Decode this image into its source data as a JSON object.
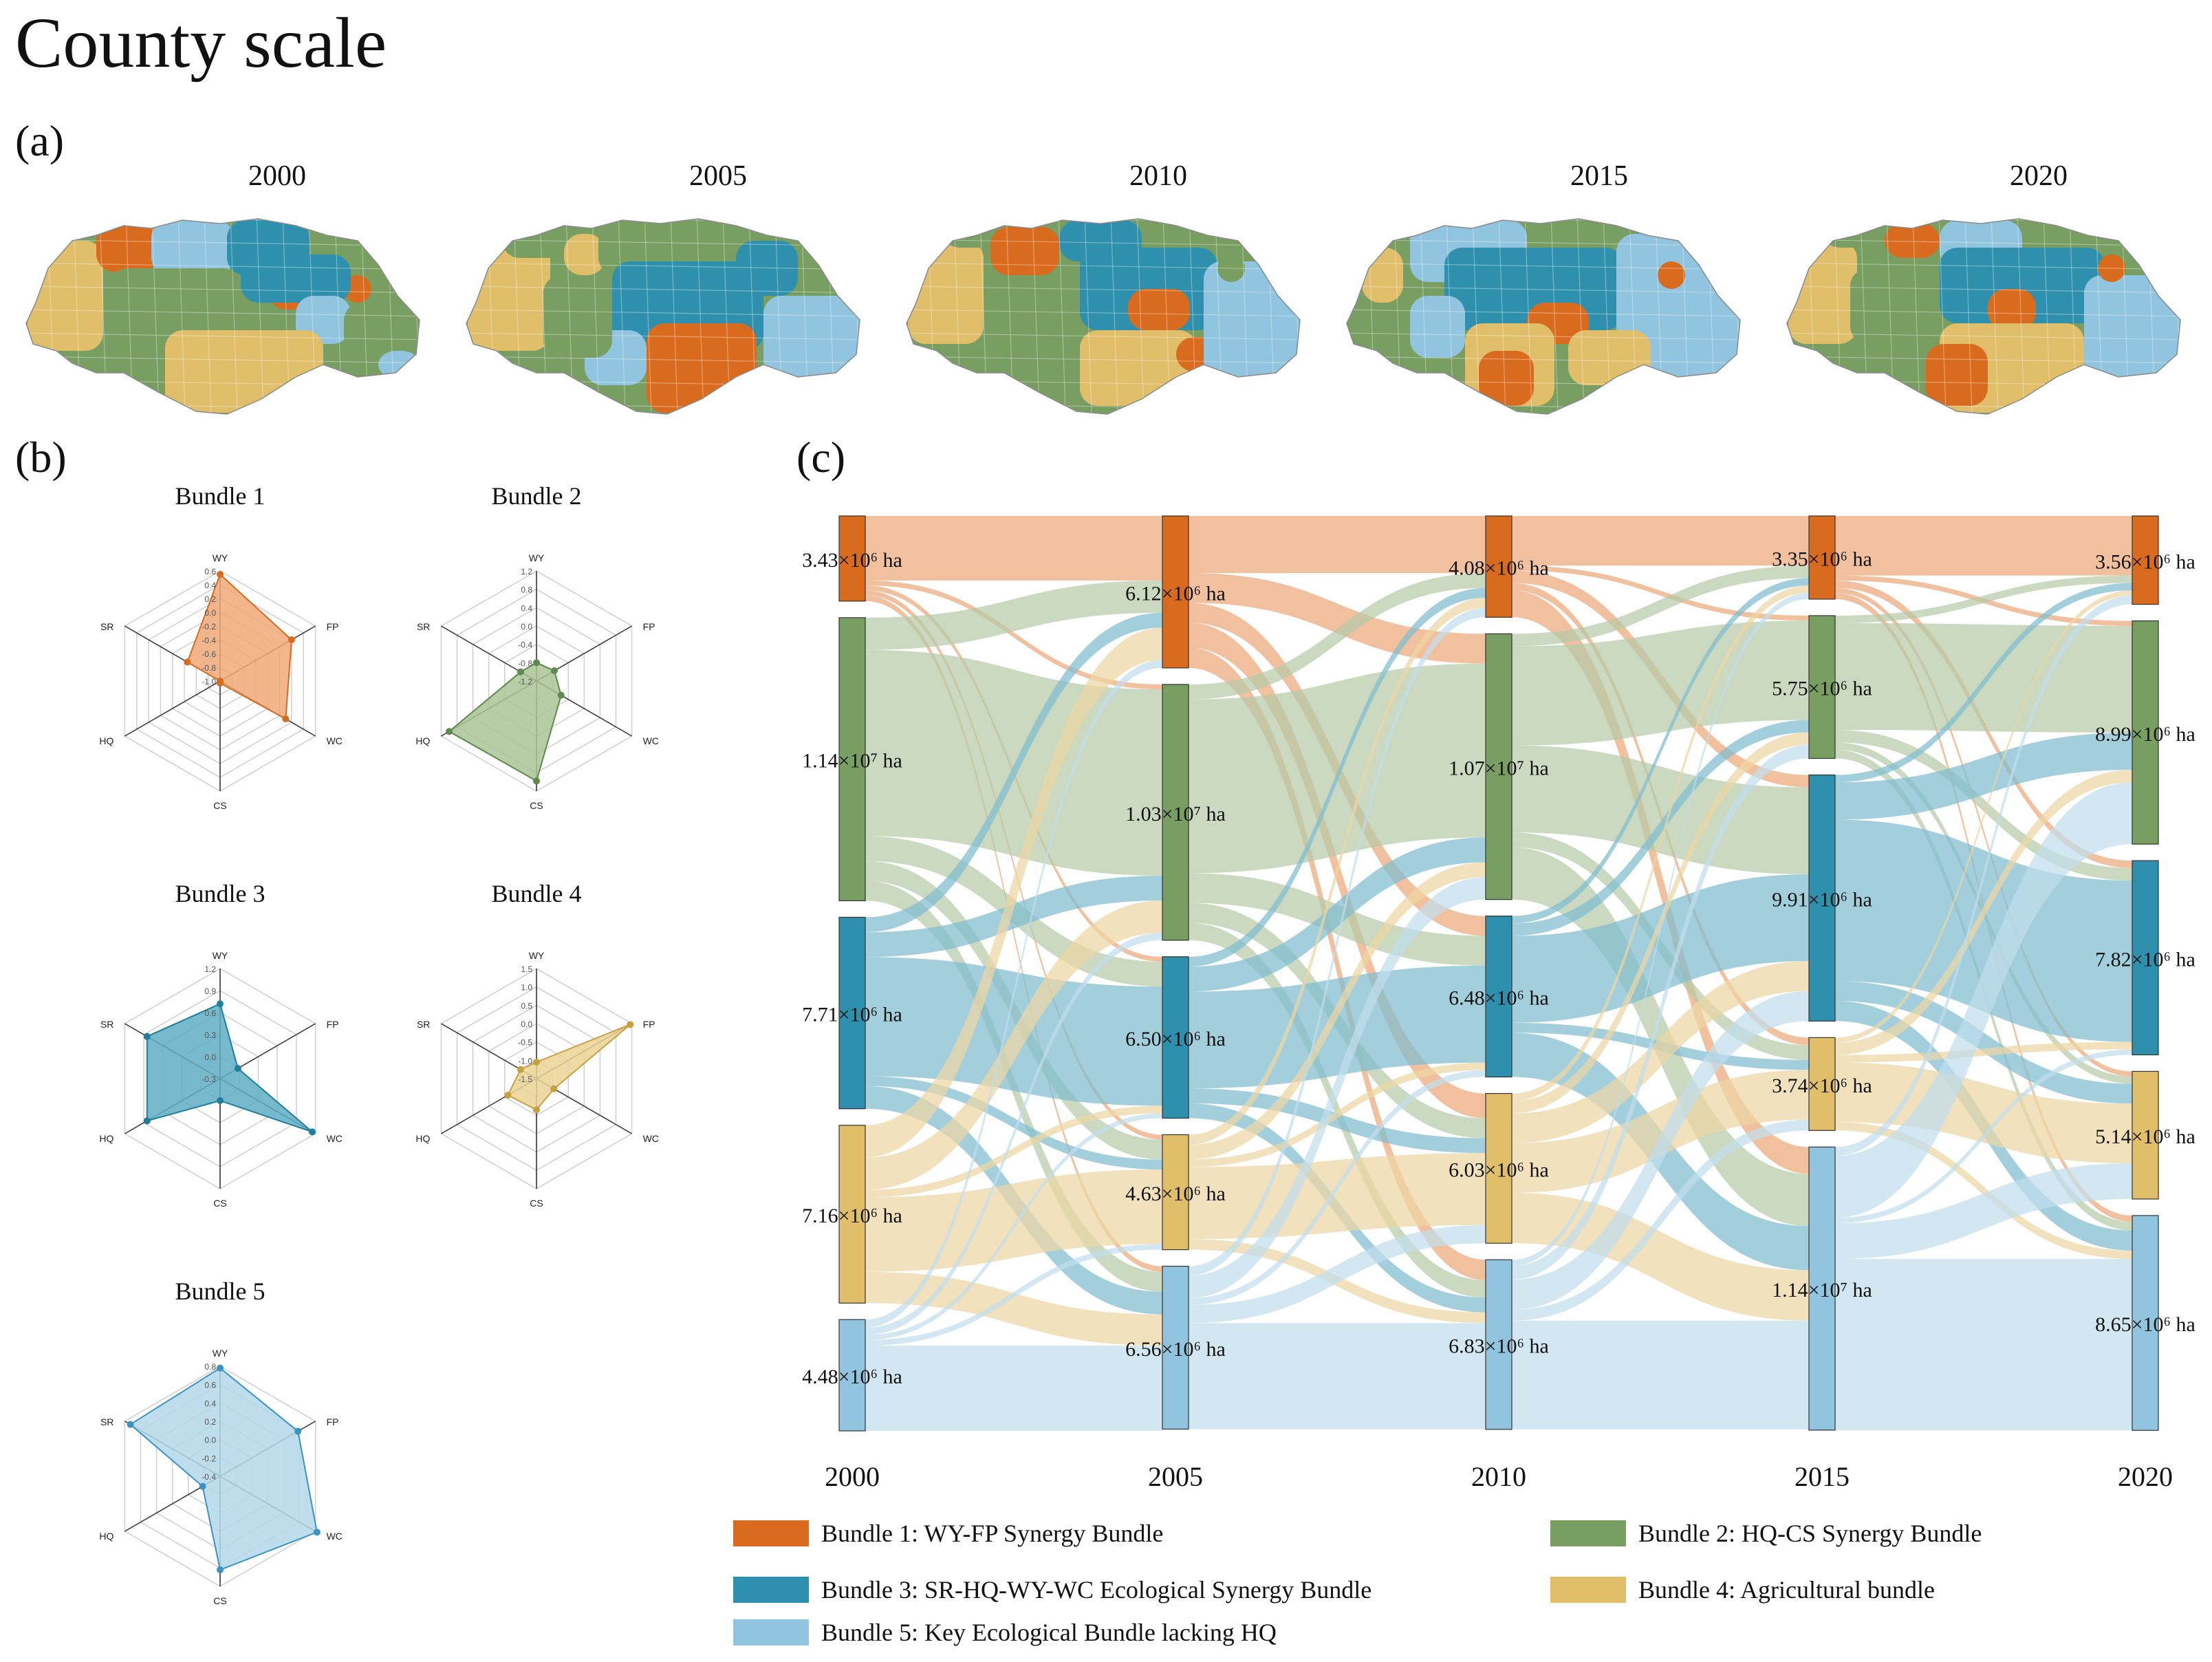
{
  "page_title": "County scale",
  "panel_labels": {
    "a": "(a)",
    "b": "(b)",
    "c": "(c)"
  },
  "colors": {
    "b1": "#D96B1E",
    "b2": "#789E62",
    "b3": "#2E90AD",
    "b4": "#E1BE6A",
    "b5": "#91C4DE",
    "b1l": "#ECA77A",
    "b2l": "#B5CBA8",
    "b3l": "#7FBDD0",
    "b4l": "#EDD6A4",
    "b5l": "#C0DEEC"
  },
  "map_years": [
    "2000",
    "2005",
    "2010",
    "2015",
    "2020"
  ],
  "chart_data": [
    {
      "type": "radar",
      "title": "Bundle 1",
      "color": "#D96B1E",
      "fill": "#F0A878",
      "axes": [
        "WY",
        "FP",
        "WC",
        "CS",
        "HQ",
        "SR"
      ],
      "ticks": [
        "0.6",
        "0.4",
        "0.2",
        "0.0",
        "-0.2",
        "-0.4",
        "-0.6",
        "-0.8",
        "-1.0"
      ],
      "range": [
        -1.0,
        0.6
      ],
      "values": [
        0.55,
        0.2,
        0.1,
        -0.97,
        -1.0,
        -0.45
      ]
    },
    {
      "type": "radar",
      "title": "Bundle 2",
      "color": "#5E8A4E",
      "fill": "#A9C495",
      "axes": [
        "WY",
        "FP",
        "WC",
        "CS",
        "HQ",
        "SR"
      ],
      "ticks": [
        "1.2",
        "0.8",
        "0.4",
        "0.0",
        "-0.4",
        "-0.8",
        "-1.2"
      ],
      "range": [
        -1.2,
        1.2
      ],
      "values": [
        -0.8,
        -0.75,
        -0.58,
        0.98,
        1.0,
        -0.8
      ]
    },
    {
      "type": "radar",
      "title": "Bundle 3",
      "color": "#1F7E9C",
      "fill": "#5FAEC6",
      "axes": [
        "WY",
        "FP",
        "WC",
        "CS",
        "HQ",
        "SR"
      ],
      "ticks": [
        "1.2",
        "0.9",
        "0.6",
        "0.3",
        "0.0",
        "-0.3"
      ],
      "range": [
        -0.3,
        1.2
      ],
      "values": [
        0.72,
        -0.02,
        1.15,
        0.0,
        0.85,
        0.85
      ]
    },
    {
      "type": "radar",
      "title": "Bundle 4",
      "color": "#C9A040",
      "fill": "#EBD394",
      "axes": [
        "WY",
        "FP",
        "WC",
        "CS",
        "HQ",
        "SR"
      ],
      "ticks": [
        "1.5",
        "1.0",
        "0.5",
        "0.0",
        "-0.5",
        "-1.0",
        "-1.5"
      ],
      "range": [
        -1.5,
        1.5
      ],
      "values": [
        -1.05,
        1.45,
        -0.95,
        -0.65,
        -0.6,
        -1.0
      ]
    },
    {
      "type": "radar",
      "title": "Bundle 5",
      "color": "#3A93C1",
      "fill": "#B4D8EA",
      "axes": [
        "WY",
        "FP",
        "WC",
        "CS",
        "HQ",
        "SR"
      ],
      "ticks": [
        "0.8",
        "0.6",
        "0.4",
        "0.2",
        "0.0",
        "-0.2",
        "-0.4"
      ],
      "range": [
        -0.4,
        0.8
      ],
      "values": [
        0.78,
        0.58,
        0.82,
        0.62,
        -0.18,
        0.73
      ]
    },
    {
      "type": "sankey",
      "years": [
        "2000",
        "2005",
        "2010",
        "2015",
        "2020"
      ],
      "nodes": [
        [
          {
            "bundle": 1,
            "value": 3.43,
            "label": "3.43×10⁶ ha"
          },
          {
            "bundle": 2,
            "value": 11.4,
            "label": "1.14×10⁷ ha"
          },
          {
            "bundle": 3,
            "value": 7.71,
            "label": "7.71×10⁶ ha"
          },
          {
            "bundle": 4,
            "value": 7.16,
            "label": "7.16×10⁶ ha"
          },
          {
            "bundle": 5,
            "value": 4.48,
            "label": "4.48×10⁶ ha"
          }
        ],
        [
          {
            "bundle": 1,
            "value": 6.12,
            "label": "6.12×10⁶ ha"
          },
          {
            "bundle": 2,
            "value": 10.3,
            "label": "1.03×10⁷ ha"
          },
          {
            "bundle": 3,
            "value": 6.5,
            "label": "6.50×10⁶ ha"
          },
          {
            "bundle": 4,
            "value": 4.63,
            "label": "4.63×10⁶ ha"
          },
          {
            "bundle": 5,
            "value": 6.56,
            "label": "6.56×10⁶ ha"
          }
        ],
        [
          {
            "bundle": 1,
            "value": 4.08,
            "label": "4.08×10⁶ ha"
          },
          {
            "bundle": 2,
            "value": 10.7,
            "label": "1.07×10⁷ ha"
          },
          {
            "bundle": 3,
            "value": 6.48,
            "label": "6.48×10⁶ ha"
          },
          {
            "bundle": 4,
            "value": 6.03,
            "label": "6.03×10⁶ ha"
          },
          {
            "bundle": 5,
            "value": 6.83,
            "label": "6.83×10⁶ ha"
          }
        ],
        [
          {
            "bundle": 1,
            "value": 3.35,
            "label": "3.35×10⁶ ha"
          },
          {
            "bundle": 2,
            "value": 5.75,
            "label": "5.75×10⁶ ha"
          },
          {
            "bundle": 3,
            "value": 9.91,
            "label": "9.91×10⁶ ha"
          },
          {
            "bundle": 4,
            "value": 3.74,
            "label": "3.74×10⁶ ha"
          },
          {
            "bundle": 5,
            "value": 11.4,
            "label": "1.14×10⁷ ha"
          }
        ],
        [
          {
            "bundle": 1,
            "value": 3.56,
            "label": "3.56×10⁶ ha"
          },
          {
            "bundle": 2,
            "value": 8.99,
            "label": "8.99×10⁶ ha"
          },
          {
            "bundle": 3,
            "value": 7.82,
            "label": "7.82×10⁶ ha"
          },
          {
            "bundle": 4,
            "value": 5.14,
            "label": "5.14×10⁶ ha"
          },
          {
            "bundle": 5,
            "value": 8.65,
            "label": "8.65×10⁶ ha"
          }
        ]
      ],
      "flows": [
        [
          [
            1,
            1,
            2.6
          ],
          [
            1,
            2,
            0.2
          ],
          [
            1,
            3,
            0.2
          ],
          [
            1,
            4,
            0.2
          ],
          [
            1,
            5,
            0.23
          ],
          [
            2,
            1,
            1.3
          ],
          [
            2,
            2,
            7.5
          ],
          [
            2,
            3,
            1.0
          ],
          [
            2,
            4,
            0.8
          ],
          [
            2,
            5,
            0.8
          ],
          [
            3,
            1,
            0.6
          ],
          [
            3,
            2,
            1.0
          ],
          [
            3,
            3,
            4.8
          ],
          [
            3,
            4,
            0.4
          ],
          [
            3,
            5,
            0.91
          ],
          [
            4,
            1,
            1.3
          ],
          [
            4,
            2,
            1.3
          ],
          [
            4,
            3,
            0.3
          ],
          [
            4,
            4,
            3.0
          ],
          [
            4,
            5,
            1.26
          ],
          [
            5,
            1,
            0.32
          ],
          [
            5,
            2,
            0.3
          ],
          [
            5,
            3,
            0.2
          ],
          [
            5,
            4,
            0.23
          ],
          [
            5,
            5,
            3.43
          ]
        ],
        [
          [
            1,
            1,
            2.3
          ],
          [
            1,
            2,
            1.2
          ],
          [
            1,
            3,
            0.8
          ],
          [
            1,
            4,
            1.0
          ],
          [
            1,
            5,
            0.82
          ],
          [
            2,
            1,
            0.6
          ],
          [
            2,
            2,
            7.0
          ],
          [
            2,
            3,
            1.2
          ],
          [
            2,
            4,
            0.8
          ],
          [
            2,
            5,
            0.7
          ],
          [
            3,
            1,
            0.4
          ],
          [
            3,
            2,
            1.0
          ],
          [
            3,
            3,
            3.9
          ],
          [
            3,
            4,
            0.6
          ],
          [
            3,
            5,
            0.6
          ],
          [
            4,
            1,
            0.4
          ],
          [
            4,
            2,
            0.6
          ],
          [
            4,
            3,
            0.3
          ],
          [
            4,
            4,
            2.9
          ],
          [
            4,
            5,
            0.43
          ],
          [
            5,
            1,
            0.38
          ],
          [
            5,
            2,
            0.9
          ],
          [
            5,
            3,
            0.28
          ],
          [
            5,
            4,
            0.73
          ],
          [
            5,
            5,
            4.27
          ]
        ],
        [
          [
            1,
            1,
            2.0
          ],
          [
            1,
            2,
            0.2
          ],
          [
            1,
            3,
            0.5
          ],
          [
            1,
            4,
            0.3
          ],
          [
            1,
            5,
            1.08
          ],
          [
            2,
            1,
            0.5
          ],
          [
            2,
            2,
            4.0
          ],
          [
            2,
            3,
            3.5
          ],
          [
            2,
            4,
            0.6
          ],
          [
            2,
            5,
            2.1
          ],
          [
            3,
            1,
            0.3
          ],
          [
            3,
            2,
            0.5
          ],
          [
            3,
            3,
            3.5
          ],
          [
            3,
            4,
            0.4
          ],
          [
            3,
            5,
            1.78
          ],
          [
            4,
            1,
            0.3
          ],
          [
            4,
            2,
            0.5
          ],
          [
            4,
            3,
            1.2
          ],
          [
            4,
            4,
            2.0
          ],
          [
            4,
            5,
            2.03
          ],
          [
            5,
            1,
            0.25
          ],
          [
            5,
            2,
            0.55
          ],
          [
            5,
            3,
            1.21
          ],
          [
            5,
            4,
            0.44
          ],
          [
            5,
            5,
            4.38
          ]
        ],
        [
          [
            1,
            1,
            2.4
          ],
          [
            1,
            2,
            0.2
          ],
          [
            1,
            3,
            0.3
          ],
          [
            1,
            4,
            0.2
          ],
          [
            1,
            5,
            0.25
          ],
          [
            2,
            1,
            0.3
          ],
          [
            2,
            2,
            4.3
          ],
          [
            2,
            3,
            0.5
          ],
          [
            2,
            4,
            0.3
          ],
          [
            2,
            5,
            0.35
          ],
          [
            3,
            1,
            0.3
          ],
          [
            3,
            2,
            1.5
          ],
          [
            3,
            3,
            6.5
          ],
          [
            3,
            4,
            0.8
          ],
          [
            3,
            5,
            0.81
          ],
          [
            4,
            1,
            0.2
          ],
          [
            4,
            2,
            0.5
          ],
          [
            4,
            3,
            0.3
          ],
          [
            4,
            4,
            2.4
          ],
          [
            4,
            5,
            0.34
          ],
          [
            5,
            1,
            0.36
          ],
          [
            5,
            2,
            2.49
          ],
          [
            5,
            3,
            0.22
          ],
          [
            5,
            4,
            1.44
          ],
          [
            5,
            5,
            6.9
          ]
        ]
      ]
    }
  ],
  "legend": [
    {
      "bundle": 1,
      "label": "Bundle 1: WY-FP Synergy Bundle"
    },
    {
      "bundle": 2,
      "label": "Bundle 2: HQ-CS Synergy Bundle"
    },
    {
      "bundle": 3,
      "label": "Bundle 3: SR-HQ-WY-WC Ecological Synergy Bundle"
    },
    {
      "bundle": 4,
      "label": "Bundle 4: Agricultural bundle"
    },
    {
      "bundle": 5,
      "label": "Bundle 5: Key Ecological Bundle lacking HQ"
    }
  ]
}
